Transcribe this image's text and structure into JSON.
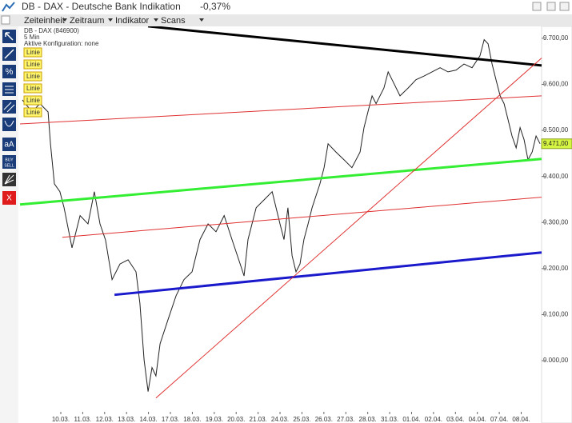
{
  "window": {
    "title": "DB - DAX - Deutsche Bank Indikation",
    "change": "-0,37%"
  },
  "menu": [
    "Zeiteinheit",
    "Zeitraum",
    "Indikator",
    "Scans"
  ],
  "toolbar": {
    "text_tool": "aA",
    "buy": "BUY",
    "sell": "SELL",
    "close": "X"
  },
  "info": [
    "DB - DAX (846900)",
    "5 Min",
    "Aktive Konfiguration: none"
  ],
  "line_tags": [
    "Linie",
    "Linie",
    "Linie",
    "Linie",
    "Linie",
    "Linie"
  ],
  "chart_data": {
    "type": "line",
    "xlim": [
      -1.86,
      21.93
    ],
    "ylim": [
      8889,
      9731
    ],
    "xticks": [
      {
        "value": 0,
        "label": "10.03."
      },
      {
        "value": 1,
        "label": "11.03."
      },
      {
        "value": 2,
        "label": "12.03."
      },
      {
        "value": 3,
        "label": "13.03."
      },
      {
        "value": 4,
        "label": "14.03."
      },
      {
        "value": 5,
        "label": "17.03."
      },
      {
        "value": 6,
        "label": "18.03."
      },
      {
        "value": 7,
        "label": "19.03."
      },
      {
        "value": 8,
        "label": "20.03."
      },
      {
        "value": 9,
        "label": "21.03."
      },
      {
        "value": 10,
        "label": "24.03."
      },
      {
        "value": 11,
        "label": "25.03."
      },
      {
        "value": 12,
        "label": "26.03."
      },
      {
        "value": 13,
        "label": "27.03."
      },
      {
        "value": 14,
        "label": "28.03."
      },
      {
        "value": 15,
        "label": "31.03."
      },
      {
        "value": 16,
        "label": "01.04."
      },
      {
        "value": 17,
        "label": "02.04."
      },
      {
        "value": 18,
        "label": "03.04."
      },
      {
        "value": 19,
        "label": "04.04."
      },
      {
        "value": 20,
        "label": "07.04."
      },
      {
        "value": 21,
        "label": "08.04."
      }
    ],
    "yticks": [
      {
        "value": 9000,
        "label": "9.000,00"
      },
      {
        "value": 9100,
        "label": "9.100,00"
      },
      {
        "value": 9200,
        "label": "9.200,00"
      },
      {
        "value": 9300,
        "label": "9.300,00"
      },
      {
        "value": 9400,
        "label": "9.400,00"
      },
      {
        "value": 9500,
        "label": "9.500,00"
      },
      {
        "value": 9600,
        "label": "9.600,00"
      },
      {
        "value": 9700,
        "label": "9.700,00"
      }
    ],
    "last_value": {
      "value": 9471,
      "label": "9.471,00"
    },
    "series": [
      {
        "color": "#222222",
        "x": [
          -1.75,
          -1.31,
          -0.95,
          -0.58,
          -0.47,
          -0.29,
          -0.04,
          0.15,
          0.51,
          0.88,
          1.24,
          1.53,
          1.79,
          2.04,
          2.34,
          2.7,
          3.07,
          3.43,
          3.61,
          3.8,
          3.98,
          4.16,
          4.34,
          4.53,
          4.89,
          5.26,
          5.62,
          5.99,
          6.35,
          6.72,
          7.08,
          7.45,
          7.81,
          8.18,
          8.36,
          8.54,
          8.91,
          9.27,
          9.64,
          10.0,
          10.18,
          10.36,
          10.55,
          10.73,
          10.91,
          11.09,
          11.28,
          11.46,
          11.82,
          12.01,
          12.19,
          12.55,
          12.92,
          13.28,
          13.65,
          13.83,
          14.01,
          14.2,
          14.38,
          14.74,
          14.93,
          15.11,
          15.47,
          15.84,
          16.2,
          16.57,
          16.93,
          17.3,
          17.66,
          18.03,
          18.39,
          18.76,
          19.12,
          19.31,
          19.49,
          19.67,
          19.85,
          20.04,
          20.22,
          20.4,
          20.58,
          20.77,
          20.95,
          21.13,
          21.31,
          21.5,
          21.68,
          21.86
        ],
        "values": [
          9566,
          9540,
          9558,
          9540,
          9471,
          9384,
          9367,
          9332,
          9245,
          9315,
          9297,
          9367,
          9297,
          9262,
          9176,
          9210,
          9219,
          9193,
          9124,
          9002,
          8933,
          8985,
          8967,
          9037,
          9089,
          9141,
          9176,
          9193,
          9263,
          9297,
          9280,
          9315,
          9263,
          9210,
          9184,
          9263,
          9332,
          9349,
          9367,
          9297,
          9263,
          9332,
          9228,
          9193,
          9210,
          9263,
          9297,
          9332,
          9384,
          9419,
          9471,
          9453,
          9436,
          9419,
          9453,
          9506,
          9540,
          9575,
          9558,
          9592,
          9627,
          9610,
          9575,
          9592,
          9610,
          9618,
          9627,
          9636,
          9627,
          9631,
          9644,
          9636,
          9662,
          9697,
          9688,
          9644,
          9610,
          9575,
          9558,
          9523,
          9488,
          9462,
          9506,
          9480,
          9436,
          9453,
          9488,
          9471
        ]
      }
    ],
    "drawings": [
      {
        "color": "#000000",
        "width": 3,
        "x": [
          3.98,
          21.93
        ],
        "values": [
          9726,
          9641
        ]
      },
      {
        "color": "#33ee33",
        "width": 3,
        "x": [
          -1.86,
          21.93
        ],
        "values": [
          9339,
          9438
        ]
      },
      {
        "color": "#1a1acc",
        "width": 3,
        "x": [
          2.45,
          21.93
        ],
        "values": [
          9143,
          9235
        ]
      },
      {
        "color": "#e03030",
        "width": 1,
        "x": [
          -1.86,
          21.93
        ],
        "values": [
          9514,
          9575
        ]
      },
      {
        "color": "#e03030",
        "width": 1,
        "x": [
          0.07,
          21.93
        ],
        "values": [
          9268,
          9355
        ]
      },
      {
        "color": "#e03030",
        "width": 1,
        "x": [
          4.34,
          21.93
        ],
        "values": [
          8919,
          9657
        ]
      }
    ]
  }
}
